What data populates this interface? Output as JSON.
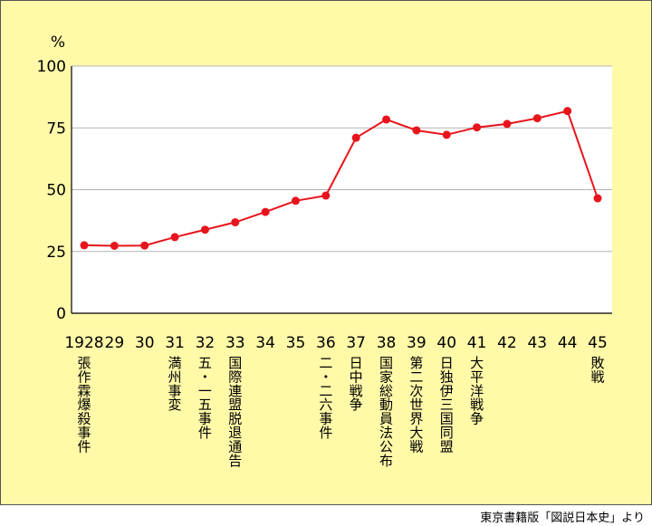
{
  "chart_data": {
    "type": "line",
    "unit": "%",
    "x": [
      "1928",
      "29",
      "30",
      "31",
      "32",
      "33",
      "34",
      "35",
      "36",
      "37",
      "38",
      "39",
      "40",
      "41",
      "42",
      "43",
      "44",
      "45"
    ],
    "y": [
      27.5,
      27.3,
      27.4,
      30.8,
      33.8,
      36.8,
      41.0,
      45.5,
      47.6,
      71.0,
      78.4,
      74.0,
      72.2,
      75.2,
      76.6,
      78.9,
      81.8,
      46.5
    ],
    "ylim": [
      0,
      100
    ],
    "yticks": [
      0,
      25,
      50,
      75,
      100
    ],
    "grid": true,
    "events": [
      {
        "x": "1928",
        "label": "張作霖爆殺事件"
      },
      {
        "x": "31",
        "label": "満州事変"
      },
      {
        "x": "32",
        "label": "五・一五事件"
      },
      {
        "x": "33",
        "label": "国際連盟脱退通告"
      },
      {
        "x": "36",
        "label": "二・二六事件"
      },
      {
        "x": "37",
        "label": "日中戦争"
      },
      {
        "x": "38",
        "label": "国家総動員法公布"
      },
      {
        "x": "39",
        "label": "第二次世界大戦"
      },
      {
        "x": "40",
        "label": "日独伊三国同盟"
      },
      {
        "x": "41",
        "label": "大平洋戦争"
      },
      {
        "x": "45",
        "label": "敗戦"
      }
    ],
    "colors": {
      "line": "#e8141c",
      "background": "#fff9a8",
      "plot": "#ffffff",
      "grid": "#b4b4b4"
    }
  },
  "source": "東京書籍版「図説日本史」より"
}
